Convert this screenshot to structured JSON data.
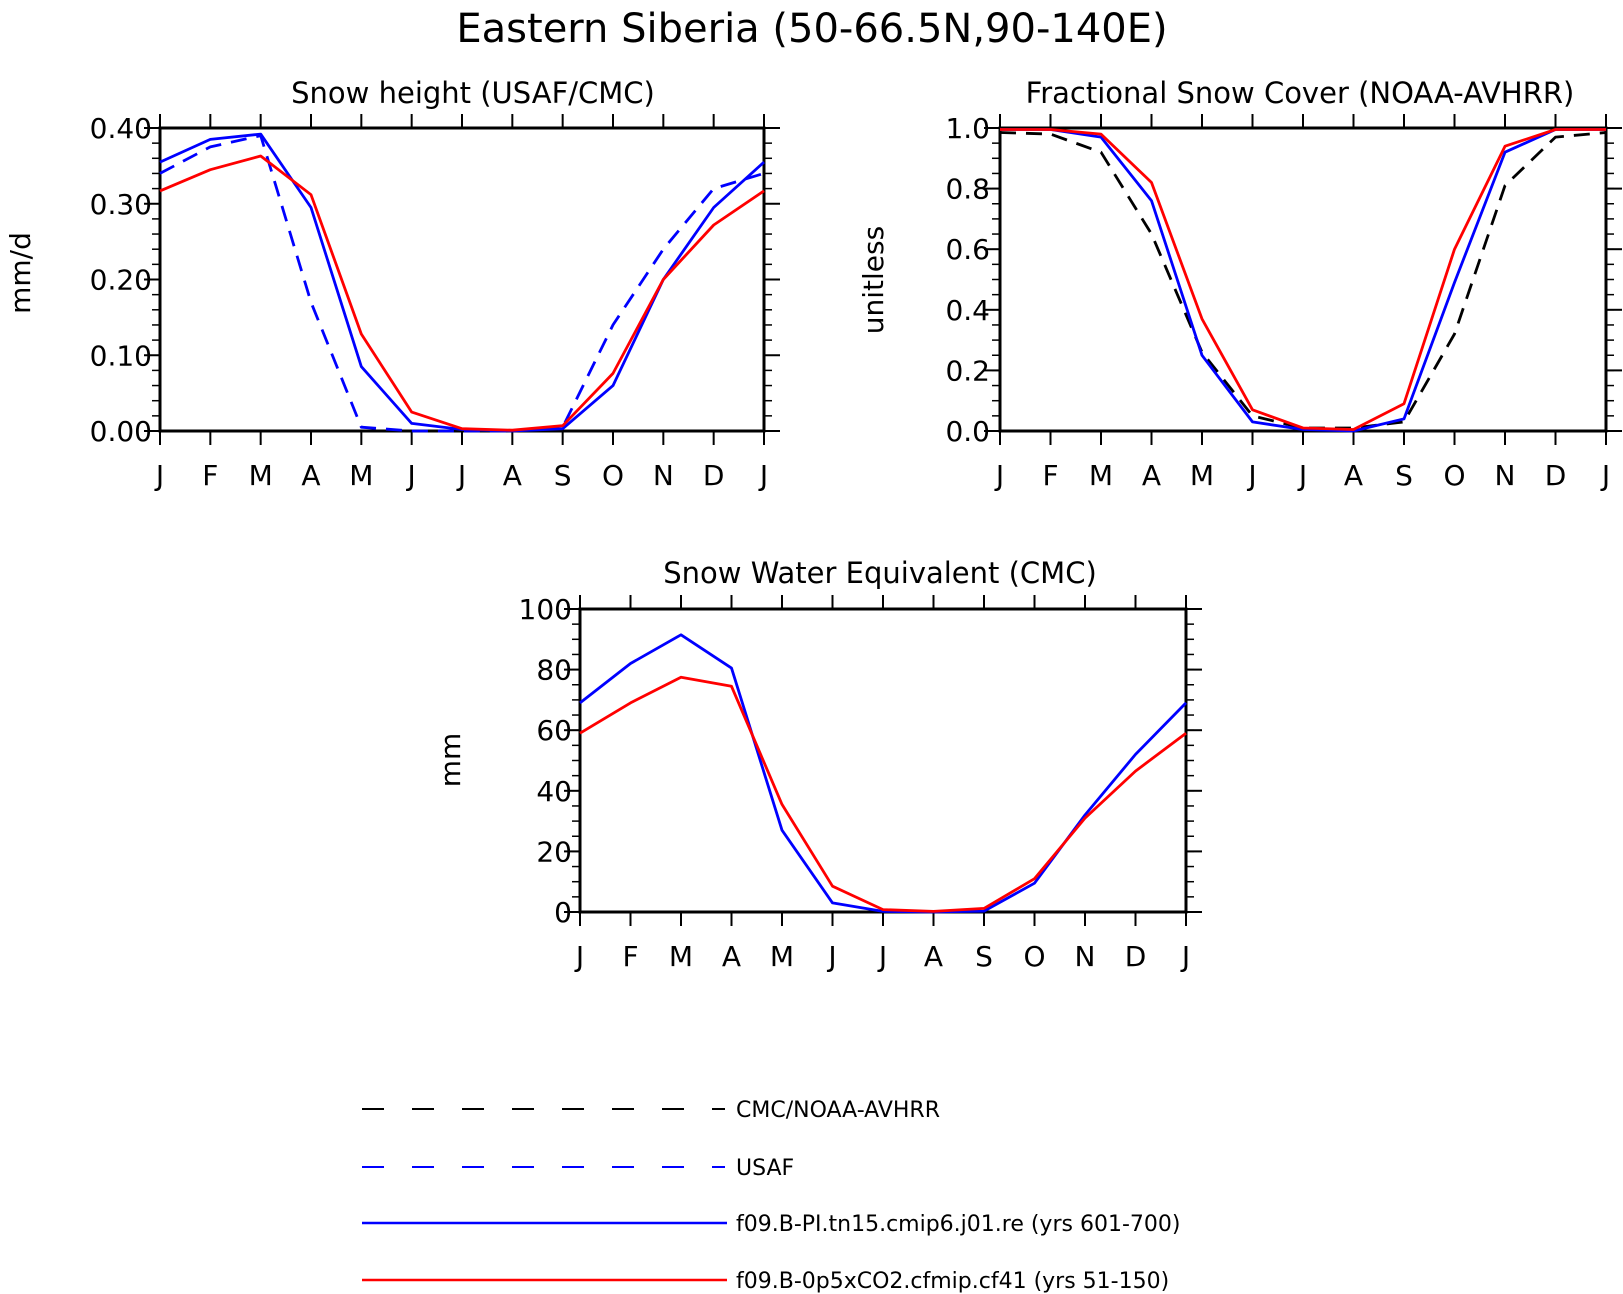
{
  "figure": {
    "title": "Eastern Siberia (50-66.5N,90-140E)"
  },
  "colors": {
    "obs_black": "#000000",
    "obs_blue": "#0000ff",
    "model_blue": "#0000ff",
    "model_red": "#ff0000"
  },
  "months": [
    "J",
    "F",
    "M",
    "A",
    "M",
    "J",
    "J",
    "A",
    "S",
    "O",
    "N",
    "D",
    "J"
  ],
  "chart_data": [
    {
      "id": "snow_height",
      "type": "line",
      "title": "Snow height (USAF/CMC)",
      "xlabel": "",
      "ylabel": "mm/d",
      "categories": [
        "J",
        "F",
        "M",
        "A",
        "M",
        "J",
        "J",
        "A",
        "S",
        "O",
        "N",
        "D",
        "J"
      ],
      "ylim": [
        0,
        0.4
      ],
      "yticks": [
        0,
        0.1,
        0.2,
        0.3,
        0.4
      ],
      "ytick_labels": [
        "0.00",
        "0.10",
        "0.20",
        "0.30",
        "0.40"
      ],
      "yminor": 0.02,
      "grid": false,
      "series": [
        {
          "name": "USAF",
          "color": "#0000ff",
          "dash": true,
          "values": [
            0.34,
            0.375,
            0.39,
            0.17,
            0.005,
            0.0,
            0.0,
            0.0,
            0.005,
            0.14,
            0.24,
            0.32,
            0.34
          ]
        },
        {
          "name": "f09.B-PI.tn15.cmip6.j01.re (yrs 601-700)",
          "color": "#0000ff",
          "dash": false,
          "values": [
            0.355,
            0.385,
            0.392,
            0.295,
            0.085,
            0.01,
            0.002,
            0.0,
            0.003,
            0.06,
            0.2,
            0.295,
            0.355
          ]
        },
        {
          "name": "f09.B-0p5xCO2.cfmip.cf41 (yrs 51-150)",
          "color": "#ff0000",
          "dash": false,
          "values": [
            0.317,
            0.345,
            0.363,
            0.312,
            0.128,
            0.025,
            0.003,
            0.001,
            0.007,
            0.076,
            0.2,
            0.272,
            0.317
          ]
        }
      ]
    },
    {
      "id": "snow_cover",
      "type": "line",
      "title": "Fractional Snow Cover (NOAA-AVHRR)",
      "xlabel": "",
      "ylabel": "unitless",
      "categories": [
        "J",
        "F",
        "M",
        "A",
        "M",
        "J",
        "J",
        "A",
        "S",
        "O",
        "N",
        "D",
        "J"
      ],
      "ylim": [
        0,
        1
      ],
      "yticks": [
        0,
        0.2,
        0.4,
        0.6,
        0.8,
        1.0
      ],
      "ytick_labels": [
        "0.0",
        "0.2",
        "0.4",
        "0.6",
        "0.8",
        "1.0"
      ],
      "yminor": 0.05,
      "grid": false,
      "series": [
        {
          "name": "CMC/NOAA-AVHRR",
          "color": "#000000",
          "dash": true,
          "values": [
            0.985,
            0.98,
            0.92,
            0.65,
            0.26,
            0.05,
            0.01,
            0.01,
            0.03,
            0.32,
            0.81,
            0.97,
            0.985
          ]
        },
        {
          "name": "f09.B-PI.tn15.cmip6.j01.re (yrs 601-700)",
          "color": "#0000ff",
          "dash": false,
          "values": [
            0.995,
            0.995,
            0.97,
            0.76,
            0.25,
            0.03,
            0.005,
            0.0,
            0.04,
            0.49,
            0.92,
            0.995,
            0.995
          ]
        },
        {
          "name": "f09.B-0p5xCO2.cfmip.cf41 (yrs 51-150)",
          "color": "#ff0000",
          "dash": false,
          "values": [
            0.995,
            0.995,
            0.98,
            0.82,
            0.37,
            0.07,
            0.01,
            0.005,
            0.09,
            0.6,
            0.94,
            0.995,
            0.995
          ]
        }
      ]
    },
    {
      "id": "swe",
      "type": "line",
      "title": "Snow Water Equivalent (CMC)",
      "xlabel": "",
      "ylabel": "mm",
      "categories": [
        "J",
        "F",
        "M",
        "A",
        "M",
        "J",
        "J",
        "A",
        "S",
        "O",
        "N",
        "D",
        "J"
      ],
      "ylim": [
        0,
        100
      ],
      "yticks": [
        0,
        20,
        40,
        60,
        80,
        100
      ],
      "ytick_labels": [
        "0",
        "20",
        "40",
        "60",
        "80",
        "100"
      ],
      "yminor": 5,
      "grid": false,
      "series": [
        {
          "name": "f09.B-PI.tn15.cmip6.j01.re (yrs 601-700)",
          "color": "#0000ff",
          "dash": false,
          "values": [
            69,
            82,
            91.5,
            80.5,
            27,
            3,
            0.2,
            0,
            0.3,
            9.5,
            32,
            52,
            69
          ]
        },
        {
          "name": "f09.B-0p5xCO2.cfmip.cf41 (yrs 51-150)",
          "color": "#ff0000",
          "dash": false,
          "values": [
            59,
            69,
            77.5,
            74.5,
            35.5,
            8.5,
            0.8,
            0.2,
            1.2,
            11,
            31,
            46.5,
            59
          ]
        }
      ]
    }
  ],
  "legend": {
    "placement": "bottom-center",
    "items": [
      {
        "label": "CMC/NOAA-AVHRR",
        "color": "#000000",
        "dash": true
      },
      {
        "label": "USAF",
        "color": "#0000ff",
        "dash": true
      },
      {
        "label": "f09.B-PI.tn15.cmip6.j01.re (yrs 601-700)",
        "color": "#0000ff",
        "dash": false
      },
      {
        "label": "f09.B-0p5xCO2.cfmip.cf41 (yrs 51-150)",
        "color": "#ff0000",
        "dash": false
      }
    ]
  }
}
